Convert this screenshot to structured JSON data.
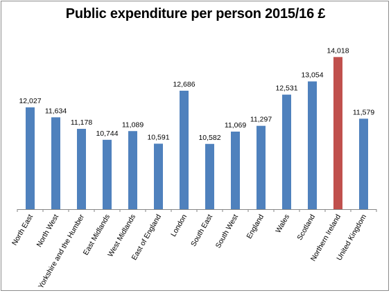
{
  "chart_data": {
    "type": "bar",
    "title": "Public expenditure per person 2015/16 £",
    "xlabel": "",
    "ylabel": "",
    "categories": [
      "North East",
      "North West",
      "Yorkshire and the Humber",
      "East Midlands",
      "West Midlands",
      "East of England",
      "London",
      "South East",
      "South West",
      "England",
      "Wales",
      "Scotland",
      "Northern Ireland",
      "United Kingdom"
    ],
    "values": [
      12027,
      11634,
      11178,
      10744,
      11089,
      10591,
      12686,
      10582,
      11069,
      11297,
      12531,
      13054,
      14018,
      11579
    ],
    "value_labels": [
      "12,027",
      "11,634",
      "11,178",
      "10,744",
      "11,089",
      "10,591",
      "12,686",
      "10,582",
      "11,069",
      "11,297",
      "12,531",
      "13,054",
      "14,018",
      "11,579"
    ],
    "ylim": [
      8000,
      14000
    ],
    "grid": false,
    "legend": "none",
    "bar_color": "#4f81bd",
    "highlight_color": "#c0504d",
    "highlight_category": "Northern Ireland"
  }
}
